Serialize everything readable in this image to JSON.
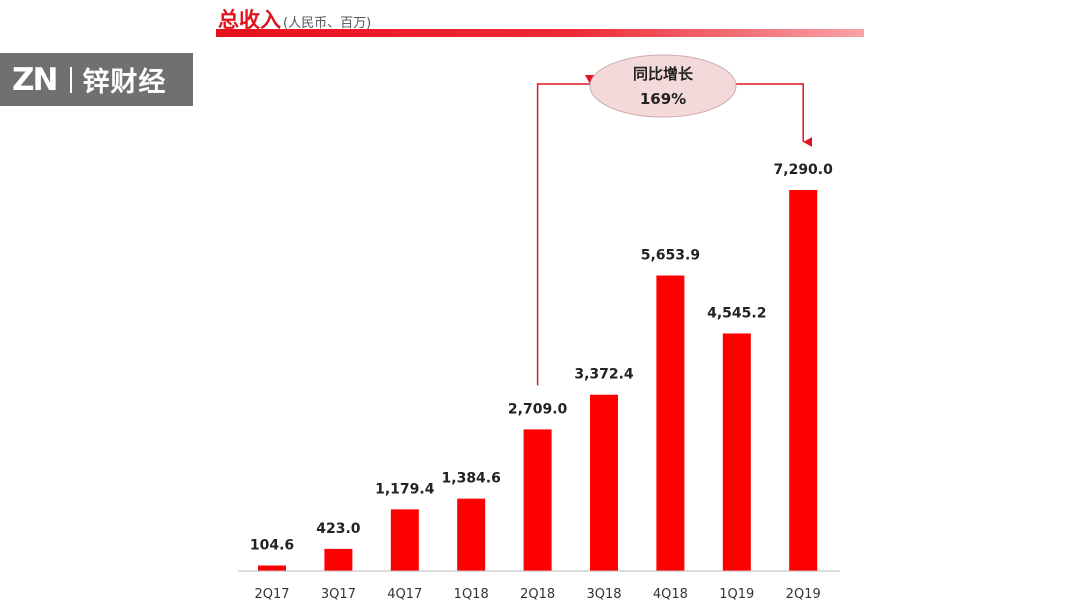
{
  "header": {
    "title": "总收入",
    "subtitle": "(人民币、百万)"
  },
  "watermark": {
    "mark": "ZN",
    "name": "锌财经"
  },
  "colors": {
    "bar": "#ff0000",
    "accent": "#e0141e",
    "watermark_bg": "#707070"
  },
  "chart_data": {
    "type": "bar",
    "categories": [
      "2Q17",
      "3Q17",
      "4Q17",
      "1Q18",
      "2Q18",
      "3Q18",
      "4Q18",
      "1Q19",
      "2Q19"
    ],
    "values": [
      104.6,
      423.0,
      1179.4,
      1384.6,
      2709.0,
      3372.4,
      5653.9,
      4545.2,
      7290.0
    ],
    "data_labels": [
      "104.6",
      "423.0",
      "1,179.4",
      "1,384.6",
      "2,709.0",
      "3,372.4",
      "5,653.9",
      "4,545.2",
      "7,290.0"
    ],
    "title": "总收入",
    "subtitle": "(人民币、百万)",
    "xlabel": "",
    "ylabel": "",
    "ylim": [
      0,
      7290
    ],
    "grid": false,
    "legend": "none",
    "annotation": {
      "line1": "同比增长",
      "line2": "169%",
      "from_category": "2Q18",
      "to_category": "2Q19"
    }
  }
}
